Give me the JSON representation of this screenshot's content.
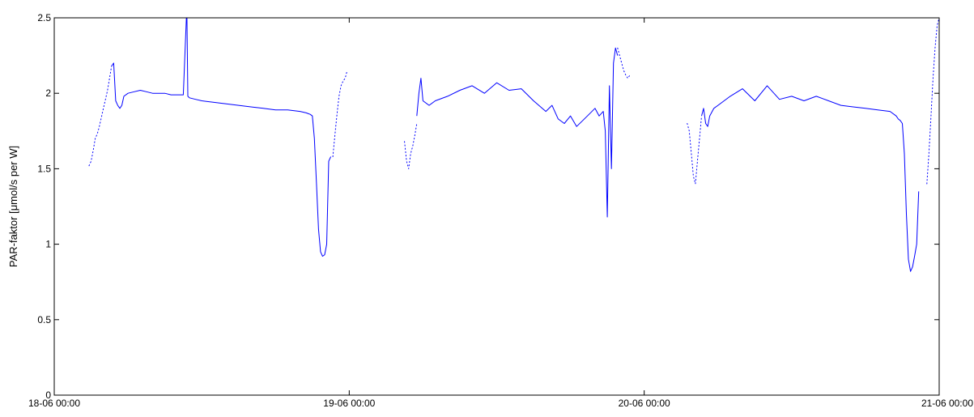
{
  "chart_data": {
    "type": "line",
    "title": "",
    "xlabel": "",
    "ylabel": "PAR-faktor [μmol/s per W]",
    "ylim": [
      0,
      2.5
    ],
    "xlim": [
      "18-06 00:00",
      "21-06 00:00"
    ],
    "x_tick_labels": [
      "18-06 00:00",
      "19-06 00:00",
      "20-06 00:00",
      "21-06 00:00"
    ],
    "y_tick_labels": [
      "0",
      "0.5",
      "1",
      "1.5",
      "2",
      "2.5"
    ],
    "grid": false,
    "legend": "none",
    "line_color": "#0000ff",
    "series": [
      {
        "style": "dotted",
        "segments": [
          {
            "x": [
              "18-06 02:50",
              "18-06 03:00",
              "18-06 03:10",
              "18-06 03:20",
              "18-06 03:30",
              "18-06 03:40",
              "18-06 03:50",
              "18-06 04:00",
              "18-06 04:10",
              "18-06 04:20",
              "18-06 04:30",
              "18-06 04:40"
            ],
            "y": [
              1.52,
              1.55,
              1.62,
              1.7,
              1.73,
              1.78,
              1.84,
              1.9,
              1.96,
              2.02,
              2.1,
              2.18
            ]
          },
          {
            "x": [
              "18-06 22:40",
              "18-06 22:50",
              "18-06 23:00",
              "18-06 23:10",
              "18-06 23:20",
              "18-06 23:30",
              "18-06 23:40",
              "18-06 23:50"
            ],
            "y": [
              1.58,
              1.72,
              1.86,
              1.98,
              2.05,
              2.08,
              2.1,
              2.15
            ]
          },
          {
            "x": [
              "19-06 04:30",
              "19-06 04:40",
              "19-06 04:50",
              "19-06 05:00",
              "19-06 05:10",
              "19-06 05:20",
              "19-06 05:30"
            ],
            "y": [
              1.68,
              1.55,
              1.5,
              1.6,
              1.65,
              1.72,
              1.8
            ]
          },
          {
            "x": [
              "19-06 21:50",
              "19-06 22:00",
              "19-06 22:10",
              "19-06 22:20",
              "19-06 22:30",
              "19-06 22:40",
              "19-06 22:50"
            ],
            "y": [
              2.3,
              2.25,
              2.2,
              2.15,
              2.12,
              2.1,
              2.12
            ]
          },
          {
            "x": [
              "20-06 03:30",
              "20-06 03:40",
              "20-06 03:50",
              "20-06 04:00",
              "20-06 04:10",
              "20-06 04:20",
              "20-06 04:30",
              "20-06 04:40"
            ],
            "y": [
              1.8,
              1.75,
              1.6,
              1.45,
              1.4,
              1.55,
              1.7,
              1.85
            ]
          },
          {
            "x": [
              "20-06 23:00",
              "20-06 23:10",
              "20-06 23:20",
              "20-06 23:30",
              "20-06 23:40",
              "20-06 23:50",
              "21-06 00:00"
            ],
            "y": [
              1.4,
              1.6,
              1.85,
              2.1,
              2.3,
              2.45,
              2.5
            ]
          }
        ]
      },
      {
        "style": "solid",
        "segments": [
          {
            "x": [
              "18-06 04:40",
              "18-06 04:50",
              "18-06 05:00",
              "18-06 05:10",
              "18-06 05:20",
              "18-06 05:30",
              "18-06 05:40",
              "18-06 06:00",
              "18-06 06:30",
              "18-06 07:00",
              "18-06 07:30",
              "18-06 08:00",
              "18-06 08:30",
              "18-06 09:00",
              "18-06 09:30",
              "18-06 10:00",
              "18-06 10:30",
              "18-06 10:45",
              "18-06 10:48",
              "18-06 10:52",
              "18-06 11:00",
              "18-06 11:30",
              "18-06 12:00",
              "18-06 13:00",
              "18-06 14:00",
              "18-06 15:00",
              "18-06 16:00",
              "18-06 17:00",
              "18-06 18:00",
              "18-06 19:00",
              "18-06 20:00",
              "18-06 20:30",
              "18-06 20:50",
              "18-06 21:00",
              "18-06 21:10",
              "18-06 21:20",
              "18-06 21:30",
              "18-06 21:40",
              "18-06 21:50",
              "18-06 22:00",
              "18-06 22:10",
              "18-06 22:20",
              "18-06 22:30"
            ],
            "y": [
              2.18,
              2.2,
              1.95,
              1.92,
              1.9,
              1.92,
              1.98,
              2.0,
              2.01,
              2.02,
              2.01,
              2.0,
              2.0,
              2.0,
              1.99,
              1.99,
              1.99,
              2.5,
              2.5,
              1.98,
              1.97,
              1.96,
              1.95,
              1.94,
              1.93,
              1.92,
              1.91,
              1.9,
              1.89,
              1.89,
              1.88,
              1.87,
              1.86,
              1.85,
              1.7,
              1.4,
              1.1,
              0.95,
              0.92,
              0.93,
              1.0,
              1.55,
              1.58
            ]
          },
          {
            "x": [
              "19-06 05:30",
              "19-06 05:40",
              "19-06 05:50",
              "19-06 06:00",
              "19-06 06:30",
              "19-06 07:00",
              "19-06 08:00",
              "19-06 09:00",
              "19-06 10:00",
              "19-06 11:00",
              "19-06 12:00",
              "19-06 13:00",
              "19-06 14:00",
              "19-06 15:00",
              "19-06 16:00",
              "19-06 16:30",
              "19-06 17:00",
              "19-06 17:30",
              "19-06 18:00",
              "19-06 18:30",
              "19-06 19:00",
              "19-06 19:30",
              "19-06 20:00",
              "19-06 20:20",
              "19-06 20:40",
              "19-06 20:50",
              "19-06 21:00",
              "19-06 21:10",
              "19-06 21:20",
              "19-06 21:30",
              "19-06 21:40",
              "19-06 21:50"
            ],
            "y": [
              1.85,
              2.0,
              2.1,
              1.95,
              1.92,
              1.95,
              1.98,
              2.02,
              2.05,
              2.0,
              2.07,
              2.02,
              2.03,
              1.95,
              1.88,
              1.92,
              1.83,
              1.8,
              1.85,
              1.78,
              1.82,
              1.86,
              1.9,
              1.85,
              1.88,
              1.75,
              1.18,
              2.05,
              1.5,
              2.2,
              2.3,
              2.25
            ]
          },
          {
            "x": [
              "20-06 04:40",
              "20-06 04:50",
              "20-06 05:00",
              "20-06 05:10",
              "20-06 05:20",
              "20-06 05:40",
              "20-06 06:00",
              "20-06 07:00",
              "20-06 08:00",
              "20-06 09:00",
              "20-06 10:00",
              "20-06 11:00",
              "20-06 12:00",
              "20-06 13:00",
              "20-06 14:00",
              "20-06 15:00",
              "20-06 16:00",
              "20-06 17:00",
              "20-06 18:00",
              "20-06 19:00",
              "20-06 20:00",
              "20-06 20:30",
              "20-06 20:40",
              "20-06 20:50",
              "20-06 21:00",
              "20-06 21:10",
              "20-06 21:20",
              "20-06 21:30",
              "20-06 21:40",
              "20-06 21:50",
              "20-06 22:00",
              "20-06 22:10",
              "20-06 22:20"
            ],
            "y": [
              1.85,
              1.9,
              1.8,
              1.78,
              1.85,
              1.9,
              1.92,
              1.98,
              2.03,
              1.95,
              2.05,
              1.96,
              1.98,
              1.95,
              1.98,
              1.95,
              1.92,
              1.91,
              1.9,
              1.89,
              1.88,
              1.85,
              1.83,
              1.82,
              1.8,
              1.6,
              1.2,
              0.9,
              0.82,
              0.85,
              0.92,
              1.0,
              1.35
            ]
          }
        ]
      }
    ]
  }
}
